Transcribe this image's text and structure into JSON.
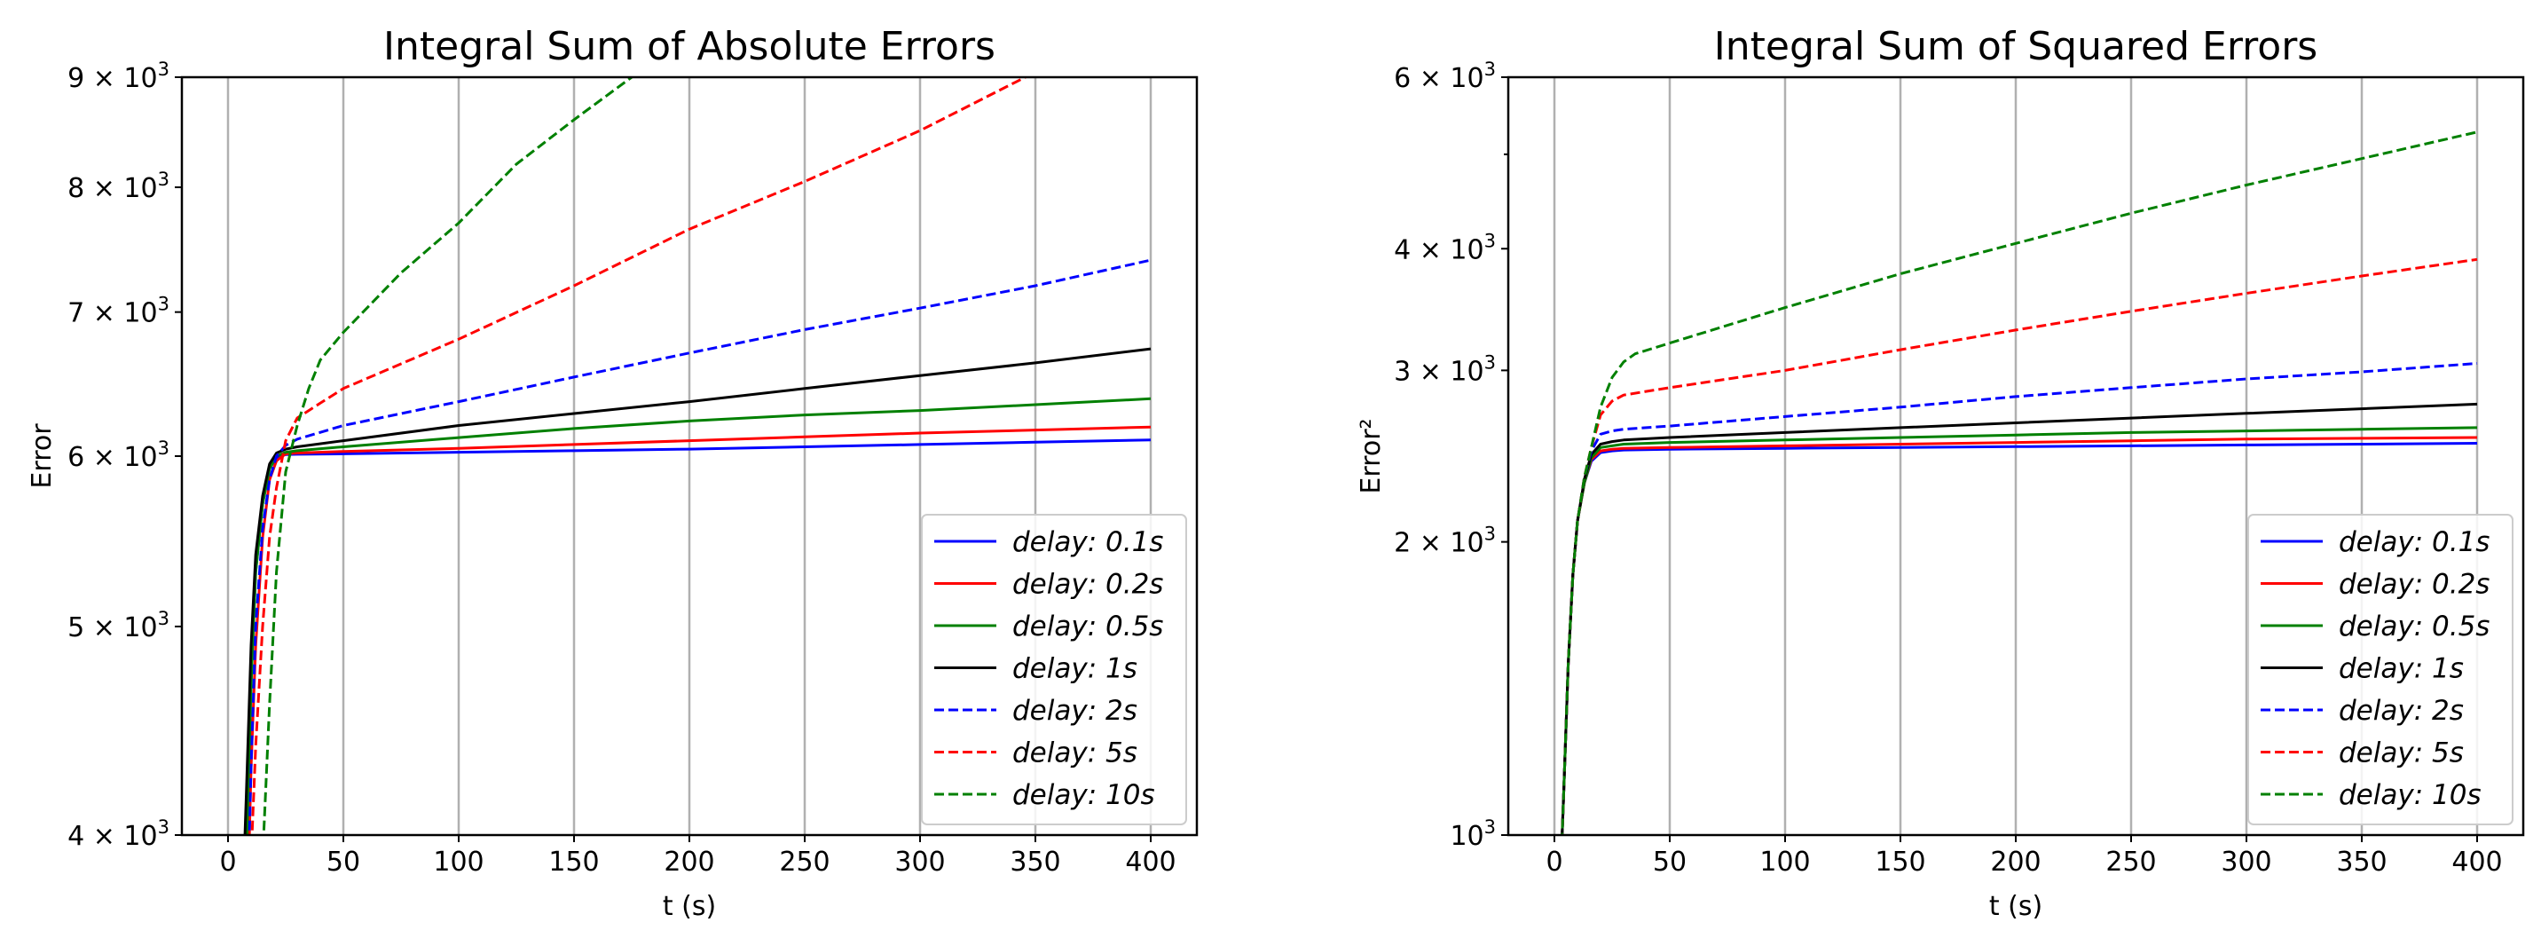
{
  "chart_data": [
    {
      "type": "line",
      "title": "Integral Sum of Absolute Errors",
      "xlabel": "t (s)",
      "ylabel": "Error",
      "xlim": [
        -20,
        420
      ],
      "ylim": [
        4000,
        9000
      ],
      "yscale": "log",
      "grid": "vertical",
      "legend_position": "lower-right",
      "x_ticks": [
        0,
        50,
        100,
        150,
        200,
        250,
        300,
        350,
        400
      ],
      "x_tick_labels": [
        "0",
        "50",
        "100",
        "150",
        "200",
        "250",
        "300",
        "350",
        "400"
      ],
      "y_ticks": [
        4000,
        5000,
        6000,
        7000,
        8000,
        9000
      ],
      "y_tick_labels": [
        {
          "mantissa": "4 × 10",
          "exp": "3"
        },
        {
          "mantissa": "5 × 10",
          "exp": "3"
        },
        {
          "mantissa": "6 × 10",
          "exp": "3"
        },
        {
          "mantissa": "7 × 10",
          "exp": "3"
        },
        {
          "mantissa": "8 × 10",
          "exp": "3"
        },
        {
          "mantissa": "9 × 10",
          "exp": "3"
        }
      ],
      "series": [
        {
          "name": "delay: 0.1s",
          "color": "#0000ff",
          "dash": "solid",
          "x": [
            8,
            9,
            10,
            12,
            15,
            18,
            21,
            25,
            30,
            50,
            100,
            150,
            200,
            250,
            300,
            350,
            400
          ],
          "y": [
            3900,
            4300,
            4700,
            5300,
            5700,
            5920,
            5990,
            6010,
            6012,
            6015,
            6025,
            6035,
            6045,
            6060,
            6075,
            6090,
            6105
          ]
        },
        {
          "name": "delay: 0.2s",
          "color": "#ff0000",
          "dash": "solid",
          "x": [
            9,
            10,
            12,
            15,
            18,
            21,
            25,
            30,
            50,
            100,
            150,
            200,
            250,
            300,
            350,
            400
          ],
          "y": [
            3900,
            4300,
            4900,
            5500,
            5850,
            5970,
            6015,
            6020,
            6030,
            6050,
            6075,
            6100,
            6125,
            6150,
            6170,
            6190
          ]
        },
        {
          "name": "delay: 0.5s",
          "color": "#008000",
          "dash": "solid",
          "x": [
            8,
            9,
            10,
            12,
            15,
            18,
            21,
            25,
            30,
            50,
            100,
            150,
            200,
            250,
            300,
            350,
            400
          ],
          "y": [
            3900,
            4300,
            4700,
            5300,
            5700,
            5920,
            6000,
            6025,
            6035,
            6060,
            6120,
            6180,
            6230,
            6270,
            6300,
            6340,
            6380
          ]
        },
        {
          "name": "delay: 1s",
          "color": "#000000",
          "dash": "solid",
          "x": [
            7,
            8,
            10,
            12,
            15,
            18,
            21,
            25,
            30,
            50,
            100,
            150,
            200,
            250,
            300,
            350,
            400
          ],
          "y": [
            3900,
            4200,
            4900,
            5400,
            5750,
            5950,
            6020,
            6045,
            6060,
            6100,
            6200,
            6280,
            6360,
            6450,
            6540,
            6630,
            6730
          ]
        },
        {
          "name": "delay: 2s",
          "color": "#0000ff",
          "dash": "dashed",
          "x": [
            9,
            10,
            12,
            15,
            18,
            21,
            25,
            30,
            50,
            100,
            150,
            200,
            250,
            300,
            350,
            400
          ],
          "y": [
            3900,
            4300,
            5000,
            5550,
            5850,
            6000,
            6070,
            6110,
            6200,
            6360,
            6530,
            6700,
            6870,
            7030,
            7200,
            7400
          ]
        },
        {
          "name": "delay: 5s",
          "color": "#ff0000",
          "dash": "dashed",
          "x": [
            10,
            12,
            15,
            18,
            21,
            25,
            30,
            40,
            50,
            100,
            150,
            200,
            250,
            300,
            350
          ],
          "y": [
            3900,
            4400,
            5000,
            5500,
            5800,
            6100,
            6250,
            6350,
            6450,
            6800,
            7200,
            7650,
            8050,
            8500,
            9050
          ]
        },
        {
          "name": "delay: 10s",
          "color": "#008000",
          "dash": "dashed",
          "x": [
            15,
            18,
            21,
            25,
            30,
            35,
            40,
            50,
            75,
            100,
            125,
            150,
            175,
            185
          ],
          "y": [
            3900,
            4600,
            5300,
            5900,
            6200,
            6450,
            6650,
            6850,
            7300,
            7700,
            8200,
            8600,
            9000,
            9080
          ]
        }
      ]
    },
    {
      "type": "line",
      "title": "Integral Sum of Squared Errors",
      "xlabel": "t (s)",
      "ylabel": "Error²",
      "xlim": [
        -20,
        420
      ],
      "ylim": [
        1000,
        6000
      ],
      "yscale": "log",
      "grid": "vertical",
      "legend_position": "lower-right",
      "x_ticks": [
        0,
        50,
        100,
        150,
        200,
        250,
        300,
        350,
        400
      ],
      "x_tick_labels": [
        "0",
        "50",
        "100",
        "150",
        "200",
        "250",
        "300",
        "350",
        "400"
      ],
      "y_ticks": [
        1000,
        2000,
        3000,
        4000,
        6000
      ],
      "y_tick_labels": [
        {
          "mantissa": "10",
          "exp": "3"
        },
        {
          "mantissa": "2 × 10",
          "exp": "3"
        },
        {
          "mantissa": "3 × 10",
          "exp": "3"
        },
        {
          "mantissa": "4 × 10",
          "exp": "3"
        },
        {
          "mantissa": "6 × 10",
          "exp": "3"
        }
      ],
      "y_minor_ticks": [
        5000
      ],
      "series": [
        {
          "name": "delay: 0.1s",
          "color": "#0000ff",
          "dash": "solid",
          "x": [
            3,
            4,
            6,
            8,
            10,
            13,
            16,
            20,
            25,
            30,
            50,
            100,
            150,
            200,
            250,
            300,
            350,
            400
          ],
          "y": [
            950,
            1100,
            1500,
            1850,
            2100,
            2300,
            2420,
            2470,
            2480,
            2485,
            2490,
            2495,
            2500,
            2505,
            2510,
            2515,
            2520,
            2525
          ]
        },
        {
          "name": "delay: 0.2s",
          "color": "#ff0000",
          "dash": "solid",
          "x": [
            3,
            4,
            6,
            8,
            10,
            13,
            16,
            20,
            25,
            30,
            50,
            100,
            150,
            200,
            250,
            300,
            350,
            400
          ],
          "y": [
            950,
            1100,
            1500,
            1850,
            2100,
            2300,
            2430,
            2480,
            2490,
            2495,
            2500,
            2510,
            2520,
            2530,
            2540,
            2550,
            2555,
            2560
          ]
        },
        {
          "name": "delay: 0.5s",
          "color": "#008000",
          "dash": "solid",
          "x": [
            3,
            4,
            6,
            8,
            10,
            13,
            16,
            20,
            25,
            30,
            50,
            100,
            150,
            200,
            250,
            300,
            350,
            400
          ],
          "y": [
            950,
            1100,
            1500,
            1850,
            2100,
            2300,
            2440,
            2500,
            2510,
            2520,
            2530,
            2545,
            2560,
            2575,
            2590,
            2600,
            2610,
            2620
          ]
        },
        {
          "name": "delay: 1s",
          "color": "#000000",
          "dash": "solid",
          "x": [
            3,
            4,
            6,
            8,
            10,
            13,
            16,
            20,
            25,
            30,
            50,
            100,
            150,
            200,
            250,
            300,
            350,
            400
          ],
          "y": [
            950,
            1100,
            1500,
            1850,
            2100,
            2320,
            2460,
            2520,
            2535,
            2545,
            2560,
            2590,
            2620,
            2650,
            2680,
            2710,
            2740,
            2770
          ]
        },
        {
          "name": "delay: 2s",
          "color": "#0000ff",
          "dash": "dashed",
          "x": [
            3,
            4,
            6,
            8,
            10,
            13,
            16,
            20,
            25,
            30,
            50,
            100,
            150,
            200,
            250,
            300,
            350,
            400
          ],
          "y": [
            950,
            1100,
            1500,
            1850,
            2100,
            2330,
            2480,
            2580,
            2600,
            2610,
            2630,
            2690,
            2750,
            2820,
            2880,
            2940,
            2990,
            3050
          ]
        },
        {
          "name": "delay: 5s",
          "color": "#ff0000",
          "dash": "dashed",
          "x": [
            3,
            4,
            6,
            8,
            10,
            13,
            16,
            20,
            25,
            30,
            50,
            100,
            150,
            200,
            250,
            300,
            350,
            400
          ],
          "y": [
            950,
            1100,
            1500,
            1850,
            2100,
            2330,
            2500,
            2700,
            2790,
            2830,
            2880,
            3000,
            3150,
            3300,
            3450,
            3600,
            3750,
            3900
          ]
        },
        {
          "name": "delay: 10s",
          "color": "#008000",
          "dash": "dashed",
          "x": [
            3,
            4,
            6,
            8,
            10,
            13,
            16,
            20,
            25,
            30,
            35,
            50,
            100,
            150,
            200,
            250,
            300,
            350,
            400
          ],
          "y": [
            950,
            1100,
            1500,
            1850,
            2100,
            2330,
            2500,
            2750,
            2950,
            3060,
            3120,
            3200,
            3480,
            3770,
            4050,
            4350,
            4650,
            4950,
            5270
          ]
        }
      ]
    }
  ]
}
